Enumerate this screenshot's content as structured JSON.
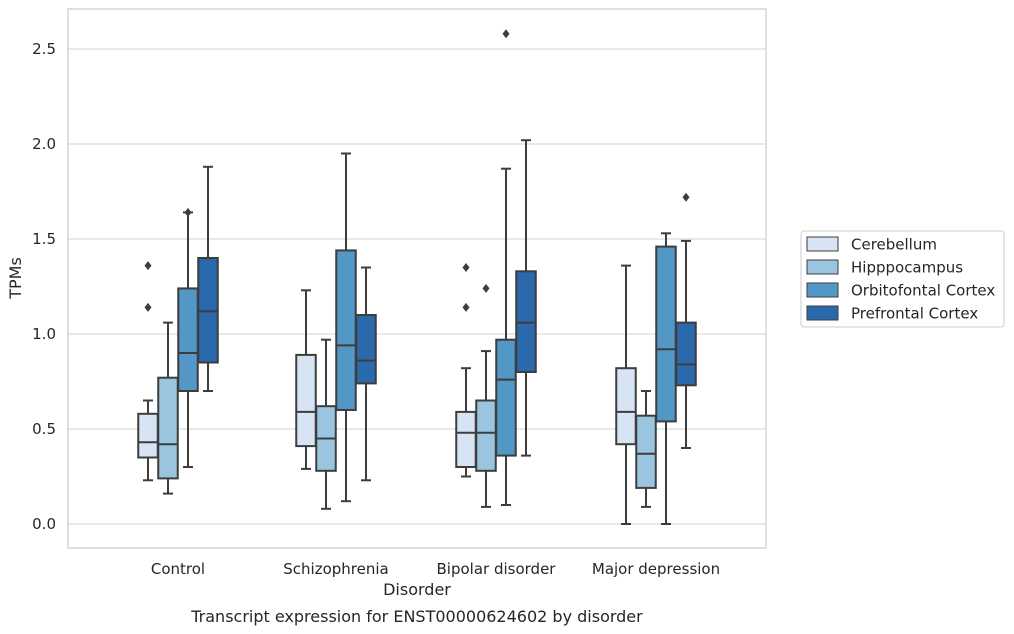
{
  "caption": "Transcript expression for ENST00000624602 by disorder",
  "chart_data": {
    "type": "boxplot",
    "xlabel": "Disorder",
    "ylabel": "TPMs",
    "ylim": [
      -0.12,
      2.72
    ],
    "yticks": [
      0.0,
      0.5,
      1.0,
      1.5,
      2.0,
      2.5
    ],
    "ytick_labels": [
      "0.0",
      "0.5",
      "1.0",
      "1.5",
      "2.0",
      "2.5"
    ],
    "grid": "horizontal",
    "legend_position": "right",
    "categories": [
      "Control",
      "Schizophrenia",
      "Bipolar disorder",
      "Major depression"
    ],
    "series": [
      {
        "name": "Cerebellum",
        "color": "#d6e4f3",
        "boxes": [
          {
            "whislo": 0.23,
            "q1": 0.35,
            "med": 0.43,
            "q3": 0.58,
            "whishi": 0.65,
            "fliers": [
              1.14,
              1.36
            ]
          },
          {
            "whislo": 0.29,
            "q1": 0.41,
            "med": 0.59,
            "q3": 0.89,
            "whishi": 1.23,
            "fliers": []
          },
          {
            "whislo": 0.25,
            "q1": 0.3,
            "med": 0.48,
            "q3": 0.59,
            "whishi": 0.82,
            "fliers": [
              1.14,
              1.35
            ]
          },
          {
            "whislo": 0.0,
            "q1": 0.42,
            "med": 0.59,
            "q3": 0.82,
            "whishi": 1.36,
            "fliers": []
          }
        ]
      },
      {
        "name": "Hipppocampus",
        "color": "#9ac5df",
        "boxes": [
          {
            "whislo": 0.16,
            "q1": 0.24,
            "med": 0.42,
            "q3": 0.77,
            "whishi": 1.06,
            "fliers": []
          },
          {
            "whislo": 0.08,
            "q1": 0.28,
            "med": 0.45,
            "q3": 0.62,
            "whishi": 0.97,
            "fliers": []
          },
          {
            "whislo": 0.09,
            "q1": 0.28,
            "med": 0.48,
            "q3": 0.65,
            "whishi": 0.91,
            "fliers": [
              1.24
            ]
          },
          {
            "whislo": 0.09,
            "q1": 0.19,
            "med": 0.37,
            "q3": 0.57,
            "whishi": 0.7,
            "fliers": []
          }
        ]
      },
      {
        "name": "Orbitofontal Cortex",
        "color": "#5297c6",
        "boxes": [
          {
            "whislo": 0.3,
            "q1": 0.7,
            "med": 0.9,
            "q3": 1.24,
            "whishi": 1.64,
            "fliers": [
              1.64
            ]
          },
          {
            "whislo": 0.12,
            "q1": 0.6,
            "med": 0.94,
            "q3": 1.44,
            "whishi": 1.95,
            "fliers": []
          },
          {
            "whislo": 0.1,
            "q1": 0.36,
            "med": 0.76,
            "q3": 0.97,
            "whishi": 1.87,
            "fliers": [
              2.58
            ]
          },
          {
            "whislo": 0.0,
            "q1": 0.54,
            "med": 0.92,
            "q3": 1.46,
            "whishi": 1.53,
            "fliers": []
          }
        ]
      },
      {
        "name": "Prefrontal Cortex",
        "color": "#2a6aac",
        "boxes": [
          {
            "whislo": 0.7,
            "q1": 0.85,
            "med": 1.12,
            "q3": 1.4,
            "whishi": 1.88,
            "fliers": []
          },
          {
            "whislo": 0.23,
            "q1": 0.74,
            "med": 0.86,
            "q3": 1.1,
            "whishi": 1.35,
            "fliers": []
          },
          {
            "whislo": 0.36,
            "q1": 0.8,
            "med": 1.06,
            "q3": 1.33,
            "whishi": 2.02,
            "fliers": []
          },
          {
            "whislo": 0.4,
            "q1": 0.73,
            "med": 0.84,
            "q3": 1.06,
            "whishi": 1.49,
            "fliers": [
              1.72
            ]
          }
        ]
      }
    ]
  }
}
